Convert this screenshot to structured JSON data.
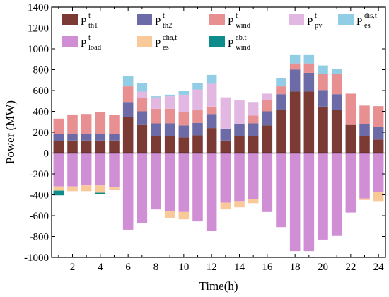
{
  "chart_data": {
    "type": "bar",
    "stacked": true,
    "xlabel": "Time(h)",
    "ylabel": "Power (MW)",
    "ylim": [
      -1000,
      1400
    ],
    "yticks": [
      -1000,
      -800,
      -600,
      -400,
      -200,
      0,
      200,
      400,
      600,
      800,
      1000,
      1200,
      1400
    ],
    "xticks": [
      2,
      4,
      6,
      8,
      10,
      12,
      14,
      16,
      18,
      20,
      22,
      24
    ],
    "x": [
      1,
      2,
      3,
      4,
      5,
      6,
      7,
      8,
      9,
      10,
      11,
      12,
      13,
      14,
      15,
      16,
      17,
      18,
      19,
      20,
      21,
      22,
      23,
      24
    ],
    "grid": false,
    "legend_position": "top",
    "series": [
      {
        "key": "th1",
        "label_main": "P",
        "label_sup": "t",
        "label_sub": "th1",
        "color": "#7b3a34",
        "side": "positive",
        "values": [
          115,
          120,
          120,
          120,
          120,
          345,
          270,
          165,
          165,
          150,
          170,
          240,
          120,
          160,
          165,
          265,
          415,
          590,
          590,
          445,
          415,
          270,
          160,
          130
        ]
      },
      {
        "key": "th2",
        "label_main": "P",
        "label_sup": "t",
        "label_sub": "th2",
        "color": "#6c6ba8",
        "side": "positive",
        "values": [
          65,
          60,
          60,
          60,
          60,
          145,
          130,
          120,
          120,
          115,
          120,
          135,
          115,
          120,
          120,
          135,
          150,
          210,
          180,
          160,
          150,
          0,
          120,
          120
        ]
      },
      {
        "key": "wind",
        "label_main": "P",
        "label_sup": "t",
        "label_sub": "wind",
        "color": "#e88f92",
        "side": "positive",
        "values": [
          150,
          190,
          195,
          215,
          185,
          150,
          130,
          140,
          140,
          130,
          120,
          70,
          0,
          0,
          75,
          110,
          75,
          60,
          90,
          155,
          195,
          300,
          175,
          200
        ]
      },
      {
        "key": "pv",
        "label_main": "P",
        "label_sup": "t",
        "label_sub": "pv",
        "color": "#e2b8e2",
        "side": "positive",
        "values": [
          0,
          0,
          0,
          0,
          0,
          0,
          60,
          110,
          120,
          165,
          200,
          220,
          300,
          230,
          130,
          60,
          0,
          0,
          0,
          0,
          0,
          0,
          0,
          0
        ]
      },
      {
        "key": "es_dis",
        "label_main": "P",
        "label_sup": "dis,t",
        "label_sub": "es",
        "color": "#92cde6",
        "side": "positive",
        "values": [
          0,
          0,
          0,
          0,
          0,
          100,
          80,
          10,
          15,
          40,
          60,
          85,
          0,
          0,
          0,
          0,
          75,
          80,
          80,
          80,
          45,
          0,
          0,
          0
        ]
      },
      {
        "key": "load",
        "label_main": "P",
        "label_sup": "t",
        "label_sub": "load",
        "color": "#d08fd4",
        "side": "negative",
        "values": [
          -320,
          -320,
          -310,
          -310,
          -330,
          -735,
          -670,
          -540,
          -555,
          -565,
          -655,
          -745,
          -475,
          -460,
          -440,
          -565,
          -710,
          -940,
          -940,
          -830,
          -795,
          -570,
          -435,
          -375
        ]
      },
      {
        "key": "es_cha",
        "label_main": "P",
        "label_sup": "cha,t",
        "label_sub": "es",
        "color": "#f9c99a",
        "side": "negative",
        "values": [
          -40,
          -45,
          -55,
          -70,
          -25,
          0,
          0,
          0,
          -65,
          -70,
          0,
          0,
          -65,
          -60,
          -40,
          0,
          0,
          0,
          0,
          0,
          0,
          0,
          -15,
          -85
        ]
      },
      {
        "key": "wind_ab",
        "label_main": "P",
        "label_sup": "ab,t",
        "label_sub": "wind",
        "color": "#0e8c8c",
        "side": "negative",
        "values": [
          -45,
          0,
          0,
          -15,
          0,
          0,
          0,
          0,
          0,
          0,
          0,
          0,
          0,
          0,
          0,
          0,
          0,
          0,
          0,
          0,
          0,
          0,
          0,
          0
        ]
      }
    ]
  }
}
